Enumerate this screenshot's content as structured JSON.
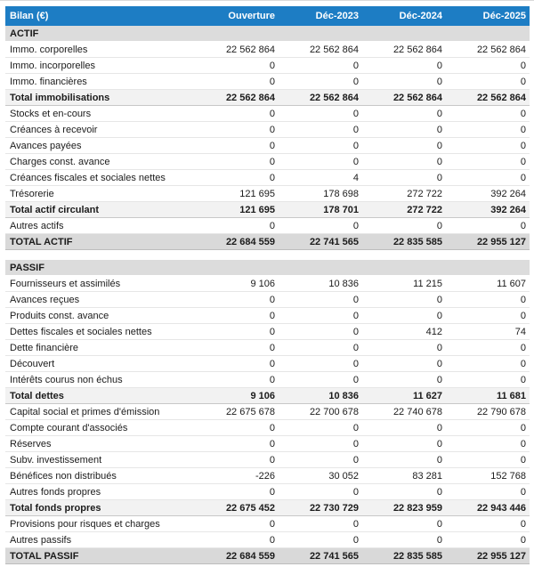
{
  "colors": {
    "header_bg": "#1d7dc4",
    "header_text": "#ffffff",
    "section_bg": "#dcdcdc",
    "subtotal_bg": "#f2f2f2",
    "grandtotal_bg": "#d9d9d9"
  },
  "table": {
    "header": {
      "label": "Bilan (€)",
      "columns": [
        "Ouverture",
        "Déc-2023",
        "Déc-2024",
        "Déc-2025"
      ]
    },
    "sections": [
      {
        "id": "actif",
        "title": "ACTIF",
        "rows": [
          {
            "label": "Immo. corporelles",
            "values": [
              "22 562 864",
              "22 562 864",
              "22 562 864",
              "22 562 864"
            ],
            "style": "normal"
          },
          {
            "label": "Immo. incorporelles",
            "values": [
              "0",
              "0",
              "0",
              "0"
            ],
            "style": "normal"
          },
          {
            "label": "Immo. financières",
            "values": [
              "0",
              "0",
              "0",
              "0"
            ],
            "style": "normal"
          },
          {
            "label": "Total immobilisations",
            "values": [
              "22 562 864",
              "22 562 864",
              "22 562 864",
              "22 562 864"
            ],
            "style": "subtotal"
          },
          {
            "label": "Stocks et en-cours",
            "values": [
              "0",
              "0",
              "0",
              "0"
            ],
            "style": "normal"
          },
          {
            "label": "Créances à recevoir",
            "values": [
              "0",
              "0",
              "0",
              "0"
            ],
            "style": "normal"
          },
          {
            "label": "Avances payées",
            "values": [
              "0",
              "0",
              "0",
              "0"
            ],
            "style": "normal"
          },
          {
            "label": "Charges const. avance",
            "values": [
              "0",
              "0",
              "0",
              "0"
            ],
            "style": "normal"
          },
          {
            "label": "Créances fiscales et sociales nettes",
            "values": [
              "0",
              "4",
              "0",
              "0"
            ],
            "style": "normal"
          },
          {
            "label": "Trésorerie",
            "values": [
              "121 695",
              "178 698",
              "272 722",
              "392 264"
            ],
            "style": "normal"
          },
          {
            "label": "Total actif circulant",
            "values": [
              "121 695",
              "178 701",
              "272 722",
              "392 264"
            ],
            "style": "subtotal"
          },
          {
            "label": "Autres actifs",
            "values": [
              "0",
              "0",
              "0",
              "0"
            ],
            "style": "normal"
          },
          {
            "label": "TOTAL ACTIF",
            "values": [
              "22 684 559",
              "22 741 565",
              "22 835 585",
              "22 955 127"
            ],
            "style": "grandtotal"
          }
        ]
      },
      {
        "id": "passif",
        "title": "PASSIF",
        "rows": [
          {
            "label": "Fournisseurs et assimilés",
            "values": [
              "9 106",
              "10 836",
              "11 215",
              "11 607"
            ],
            "style": "normal"
          },
          {
            "label": "Avances reçues",
            "values": [
              "0",
              "0",
              "0",
              "0"
            ],
            "style": "normal"
          },
          {
            "label": "Produits const. avance",
            "values": [
              "0",
              "0",
              "0",
              "0"
            ],
            "style": "normal"
          },
          {
            "label": "Dettes fiscales et sociales nettes",
            "values": [
              "0",
              "0",
              "412",
              "74"
            ],
            "style": "normal"
          },
          {
            "label": "Dette financière",
            "values": [
              "0",
              "0",
              "0",
              "0"
            ],
            "style": "normal"
          },
          {
            "label": "Découvert",
            "values": [
              "0",
              "0",
              "0",
              "0"
            ],
            "style": "normal"
          },
          {
            "label": "Intérêts courus non échus",
            "values": [
              "0",
              "0",
              "0",
              "0"
            ],
            "style": "normal"
          },
          {
            "label": "Total dettes",
            "values": [
              "9 106",
              "10 836",
              "11 627",
              "11 681"
            ],
            "style": "subtotal"
          },
          {
            "label": "Capital social et primes d'émission",
            "values": [
              "22 675 678",
              "22 700 678",
              "22 740 678",
              "22 790 678"
            ],
            "style": "normal"
          },
          {
            "label": "Compte courant d'associés",
            "values": [
              "0",
              "0",
              "0",
              "0"
            ],
            "style": "normal"
          },
          {
            "label": "Réserves",
            "values": [
              "0",
              "0",
              "0",
              "0"
            ],
            "style": "normal"
          },
          {
            "label": "Subv. investissement",
            "values": [
              "0",
              "0",
              "0",
              "0"
            ],
            "style": "normal"
          },
          {
            "label": "Bénéfices non distribués",
            "values": [
              "-226",
              "30 052",
              "83 281",
              "152 768"
            ],
            "style": "normal"
          },
          {
            "label": "Autres fonds propres",
            "values": [
              "0",
              "0",
              "0",
              "0"
            ],
            "style": "normal"
          },
          {
            "label": "Total fonds propres",
            "values": [
              "22 675 452",
              "22 730 729",
              "22 823 959",
              "22 943 446"
            ],
            "style": "subtotal"
          },
          {
            "label": "Provisions pour risques et charges",
            "values": [
              "0",
              "0",
              "0",
              "0"
            ],
            "style": "normal"
          },
          {
            "label": "Autres passifs",
            "values": [
              "0",
              "0",
              "0",
              "0"
            ],
            "style": "normal"
          },
          {
            "label": "TOTAL PASSIF",
            "values": [
              "22 684 559",
              "22 741 565",
              "22 835 585",
              "22 955 127"
            ],
            "style": "grandtotal"
          }
        ]
      }
    ]
  }
}
